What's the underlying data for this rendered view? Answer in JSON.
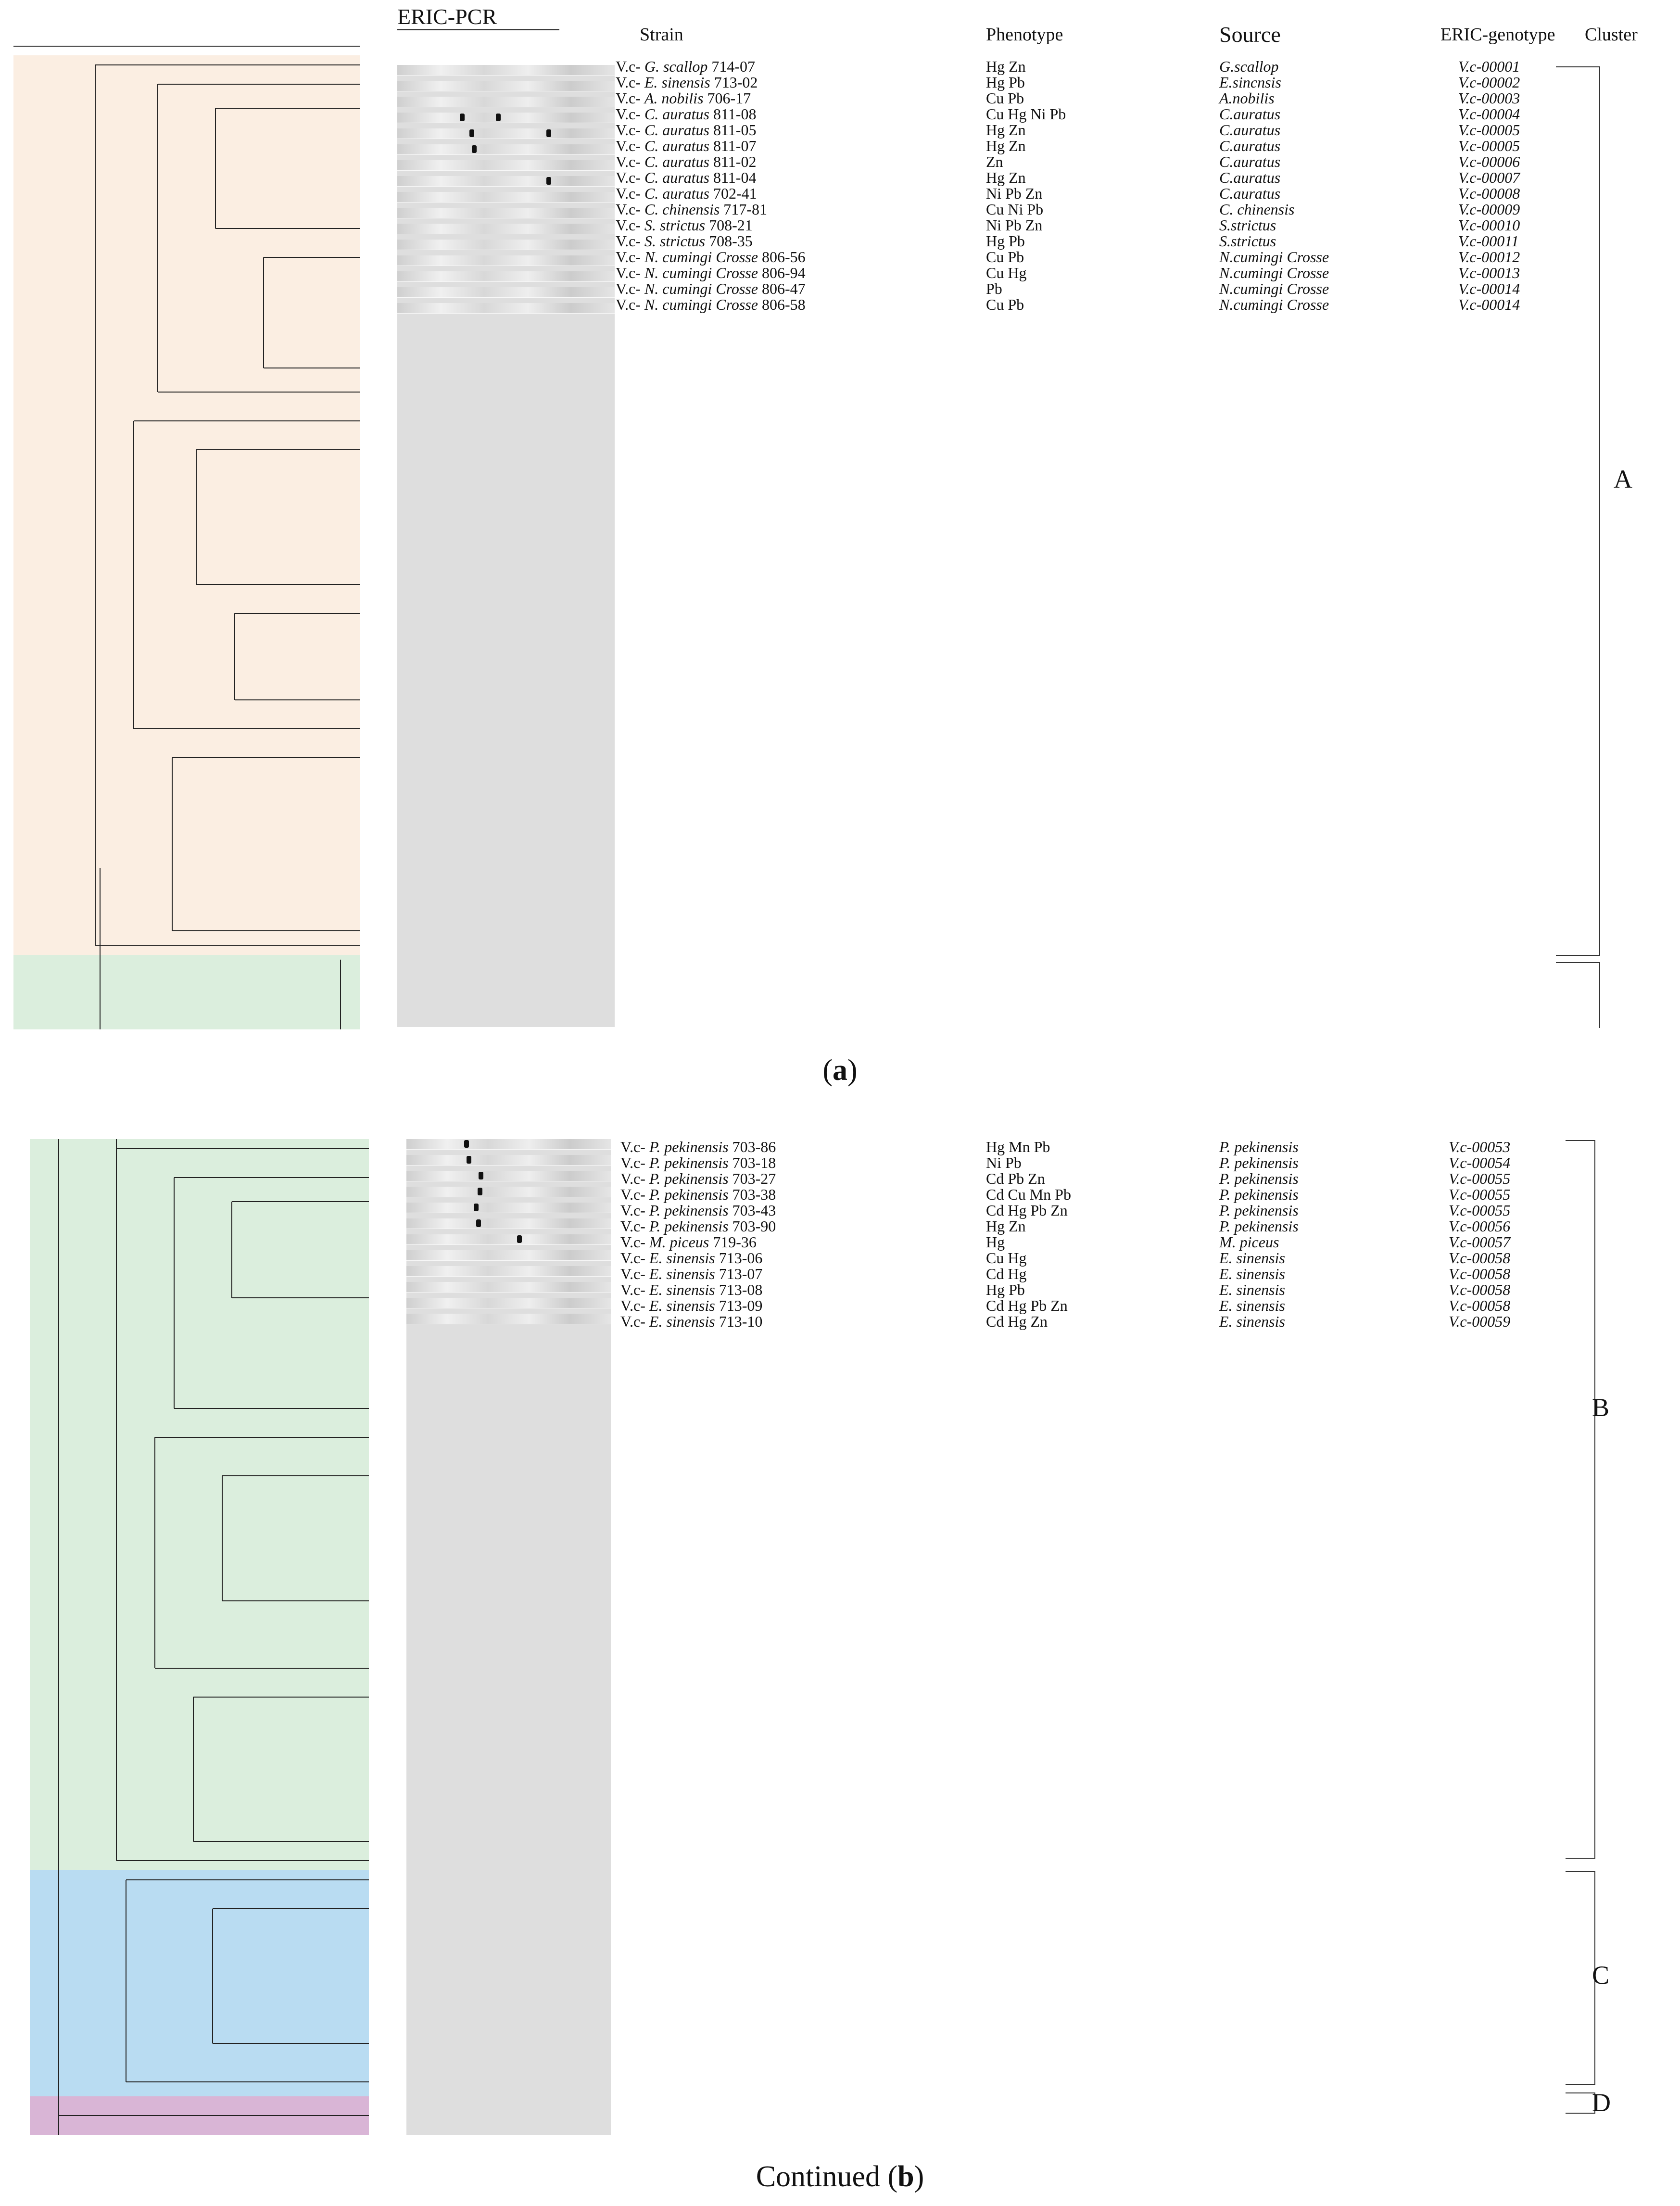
{
  "panel_a": {
    "headers": {
      "eric_pcr": "ERIC-PCR",
      "strain": "Strain",
      "phenotype": "Phenotype",
      "source": "Source",
      "genotype": "ERIC-genotype",
      "cluster": "Cluster"
    },
    "rows": [
      {
        "prefix": "V.c- ",
        "species": "G. scallop",
        "num": "714-07",
        "pheno": "Hg  Zn",
        "source": "G.scallop",
        "geno": "V.c-00001"
      },
      {
        "prefix": "V.c- ",
        "species": "E. sinensis",
        "num": "713-02",
        "pheno": "Hg  Pb",
        "source": "E.sincnsis",
        "geno": "V.c-00002"
      },
      {
        "prefix": "V.c- ",
        "species": "A. nobilis",
        "num": "706-17",
        "pheno": "Cu  Pb",
        "source": "A.nobilis",
        "geno": "V.c-00003"
      },
      {
        "prefix": "V.c- ",
        "species": "C. auratus",
        "num": "811-08",
        "pheno": "Cu  Hg  Ni  Pb",
        "source": "C.auratus",
        "geno": "V.c-00004"
      },
      {
        "prefix": "V.c- ",
        "species": "C. auratus",
        "num": "811-05",
        "pheno": "Hg  Zn",
        "source": "C.auratus",
        "geno": "V.c-00005"
      },
      {
        "prefix": "V.c- ",
        "species": "C. auratus",
        "num": "811-07",
        "pheno": "Hg  Zn",
        "source": "C.auratus",
        "geno": "V.c-00005"
      },
      {
        "prefix": "V.c- ",
        "species": "C. auratus",
        "num": "811-02",
        "pheno": "Zn",
        "source": "C.auratus",
        "geno": "V.c-00006"
      },
      {
        "prefix": "V.c- ",
        "species": "C. auratus",
        "num": "811-04",
        "pheno": "Hg  Zn",
        "source": "C.auratus",
        "geno": "V.c-00007"
      },
      {
        "prefix": "V.c- ",
        "species": "C. auratus",
        "num": "702-41",
        "pheno": "Ni  Pb  Zn",
        "source": "C.auratus",
        "geno": "V.c-00008"
      },
      {
        "prefix": "V.c- ",
        "species": "C. chinensis",
        "num": "717-81",
        "pheno": "Cu  Ni  Pb",
        "source": "C. chinensis",
        "geno": "V.c-00009"
      },
      {
        "prefix": "V.c- ",
        "species": "S. strictus",
        "num": "708-21",
        "pheno": "Ni  Pb  Zn",
        "source": "S.strictus",
        "geno": "V.c-00010"
      },
      {
        "prefix": "V.c- ",
        "species": "S. strictus",
        "num": "708-35",
        "pheno": "Hg  Pb",
        "source": "S.strictus",
        "geno": "V.c-00011"
      },
      {
        "prefix": "V.c- ",
        "species": "N. cumingi Crosse",
        "num": "806-56",
        "pheno": "Cu  Pb",
        "source": "N.cumingi Crosse",
        "geno": "V.c-00012"
      },
      {
        "prefix": "V.c- ",
        "species": "N. cumingi Crosse",
        "num": "806-94",
        "pheno": "Cu  Hg",
        "source": "N.cumingi Crosse",
        "geno": "V.c-00013"
      },
      {
        "prefix": "V.c- ",
        "species": "N. cumingi Crosse",
        "num": "806-47",
        "pheno": "Pb",
        "source": "N.cumingi Crosse",
        "geno": "V.c-00014"
      },
      {
        "prefix": "V.c- ",
        "species": "N. cumingi Crosse",
        "num": "806-58",
        "pheno": "Cu  Pb",
        "source": "N.cumingi Crosse",
        "geno": "V.c-00014"
      }
    ],
    "cluster_label": "A",
    "caption_letter": "a"
  },
  "panel_b": {
    "rows": [
      {
        "prefix": "V.c- ",
        "species": "P. pekinensis",
        "num": "703-86",
        "pheno": "Hg  Mn  Pb",
        "source": "P. pekinensis",
        "geno": "V.c-00053"
      },
      {
        "prefix": "V.c- ",
        "species": "P. pekinensis",
        "num": "703-18",
        "pheno": "Ni  Pb",
        "source": "P. pekinensis",
        "geno": "V.c-00054"
      },
      {
        "prefix": "V.c- ",
        "species": "P. pekinensis",
        "num": "703-27",
        "pheno": "Cd  Pb  Zn",
        "source": "P. pekinensis",
        "geno": "V.c-00055"
      },
      {
        "prefix": "V.c- ",
        "species": "P. pekinensis",
        "num": "703-38",
        "pheno": "Cd  Cu  Mn  Pb",
        "source": "P. pekinensis",
        "geno": "V.c-00055"
      },
      {
        "prefix": "V.c- ",
        "species": "P. pekinensis",
        "num": "703-43",
        "pheno": "Cd  Hg  Pb  Zn",
        "source": "P. pekinensis",
        "geno": "V.c-00055"
      },
      {
        "prefix": "V.c- ",
        "species": "P. pekinensis",
        "num": "703-90",
        "pheno": "Hg  Zn",
        "source": "P. pekinensis",
        "geno": "V.c-00056"
      },
      {
        "prefix": "V.c- ",
        "species": "M. piceus",
        "num": "719-36",
        "pheno": "Hg",
        "source": "M. piceus",
        "geno": "V.c-00057"
      },
      {
        "prefix": "V.c- ",
        "species": "E. sinensis",
        "num": "713-06",
        "pheno": "Cu  Hg",
        "source": "E. sinensis",
        "geno": "V.c-00058"
      },
      {
        "prefix": "V.c- ",
        "species": "E. sinensis",
        "num": "713-07",
        "pheno": "Cd  Hg",
        "source": "E. sinensis",
        "geno": "V.c-00058"
      },
      {
        "prefix": "V.c- ",
        "species": "E. sinensis",
        "num": "713-08",
        "pheno": "Hg  Pb",
        "source": "E. sinensis",
        "geno": "V.c-00058"
      },
      {
        "prefix": "V.c- ",
        "species": "E. sinensis",
        "num": "713-09",
        "pheno": "Cd  Hg  Pb  Zn",
        "source": "E. sinensis",
        "geno": "V.c-00058"
      },
      {
        "prefix": "V.c- ",
        "species": "E. sinensis",
        "num": "713-10",
        "pheno": "Cd  Hg  Zn",
        "source": "E. sinensis",
        "geno": "V.c-00059"
      }
    ],
    "cluster_labels": [
      "B",
      "C",
      "D"
    ],
    "caption_prefix": "Continued (",
    "caption_letter": "b",
    "caption_suffix": ")"
  }
}
